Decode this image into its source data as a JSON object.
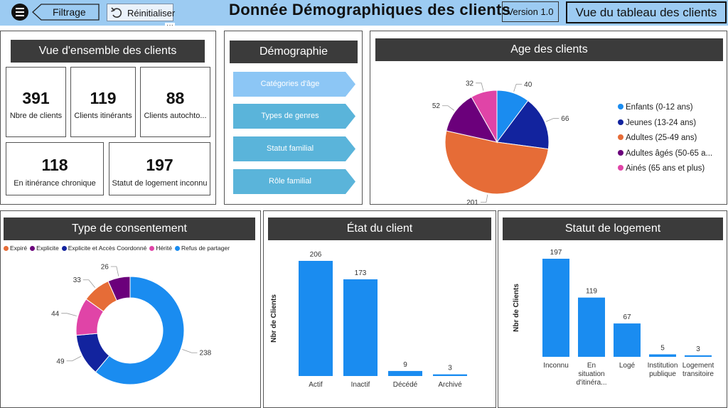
{
  "header": {
    "back_label": "Filtrage",
    "reset_label": "Réinitialiser",
    "more_label": "···",
    "title": "Donnée Démographiques des clients",
    "version": "Version 1.0",
    "dashboard_button": "Vue du tableau des clients",
    "bg_color": "#9ccbf2"
  },
  "overview": {
    "title": "Vue d'ensemble des clients",
    "kpis": [
      {
        "value": "391",
        "label": "Nbre de clients"
      },
      {
        "value": "119",
        "label": "Clients itinérants"
      },
      {
        "value": "88",
        "label": "Clients autochto..."
      },
      {
        "value": "118",
        "label": "En itinérance chronique"
      },
      {
        "value": "197",
        "label": "Statut de logement inconnu"
      }
    ]
  },
  "demography": {
    "title": "Démographie",
    "buttons": [
      {
        "label": "Catégories d'âge",
        "color": "#8cc6f5"
      },
      {
        "label": "Types de genres",
        "color": "#5ab4da"
      },
      {
        "label": "Statut familial",
        "color": "#5ab4da"
      },
      {
        "label": "Rôle familial",
        "color": "#5ab4da"
      }
    ]
  },
  "age_chart": {
    "title": "Age des clients",
    "chart_data": {
      "type": "pie",
      "categories": [
        "Enfants (0-12 ans)",
        "Jeunes (13-24 ans)",
        "Adultes (25-49 ans)",
        "Adultes âgés (50-65 a...",
        "Ainés (65 ans et plus)"
      ],
      "values": [
        40,
        66,
        201,
        52,
        32
      ],
      "colors": [
        "#1a8cf0",
        "#12239e",
        "#e66c37",
        "#6b007b",
        "#e044a7"
      ],
      "legend": "right"
    }
  },
  "consent_chart": {
    "title": "Type de consentement",
    "chart_data": {
      "type": "pie",
      "categories": [
        "Expiré",
        "Explicite",
        "Explicite et Accès Coordonné",
        "Hérité",
        "Refus de partager"
      ],
      "values": [
        33,
        26,
        49,
        44,
        238
      ],
      "colors": [
        "#e66c37",
        "#6b007b",
        "#12239e",
        "#e044a7",
        "#1a8cf0"
      ],
      "legend": "top",
      "donut": true
    }
  },
  "state_chart": {
    "title": "État du client",
    "chart_data": {
      "type": "bar",
      "categories": [
        "Actif",
        "Inactif",
        "Décédé",
        "Archivé"
      ],
      "values": [
        206,
        173,
        9,
        3
      ],
      "ylabel": "Nbr de Clients",
      "color": "#1a8cf0"
    }
  },
  "housing_chart": {
    "title": "Statut de logement",
    "chart_data": {
      "type": "bar",
      "categories": [
        [
          "Inconnu"
        ],
        [
          "En",
          "situation",
          "d'itinéra..."
        ],
        [
          "Logé"
        ],
        [
          "Institution",
          "publique"
        ],
        [
          "Logement",
          "transitoire"
        ]
      ],
      "values": [
        197,
        119,
        67,
        5,
        3
      ],
      "ylabel": "Nbr de Clients",
      "color": "#1a8cf0"
    }
  }
}
